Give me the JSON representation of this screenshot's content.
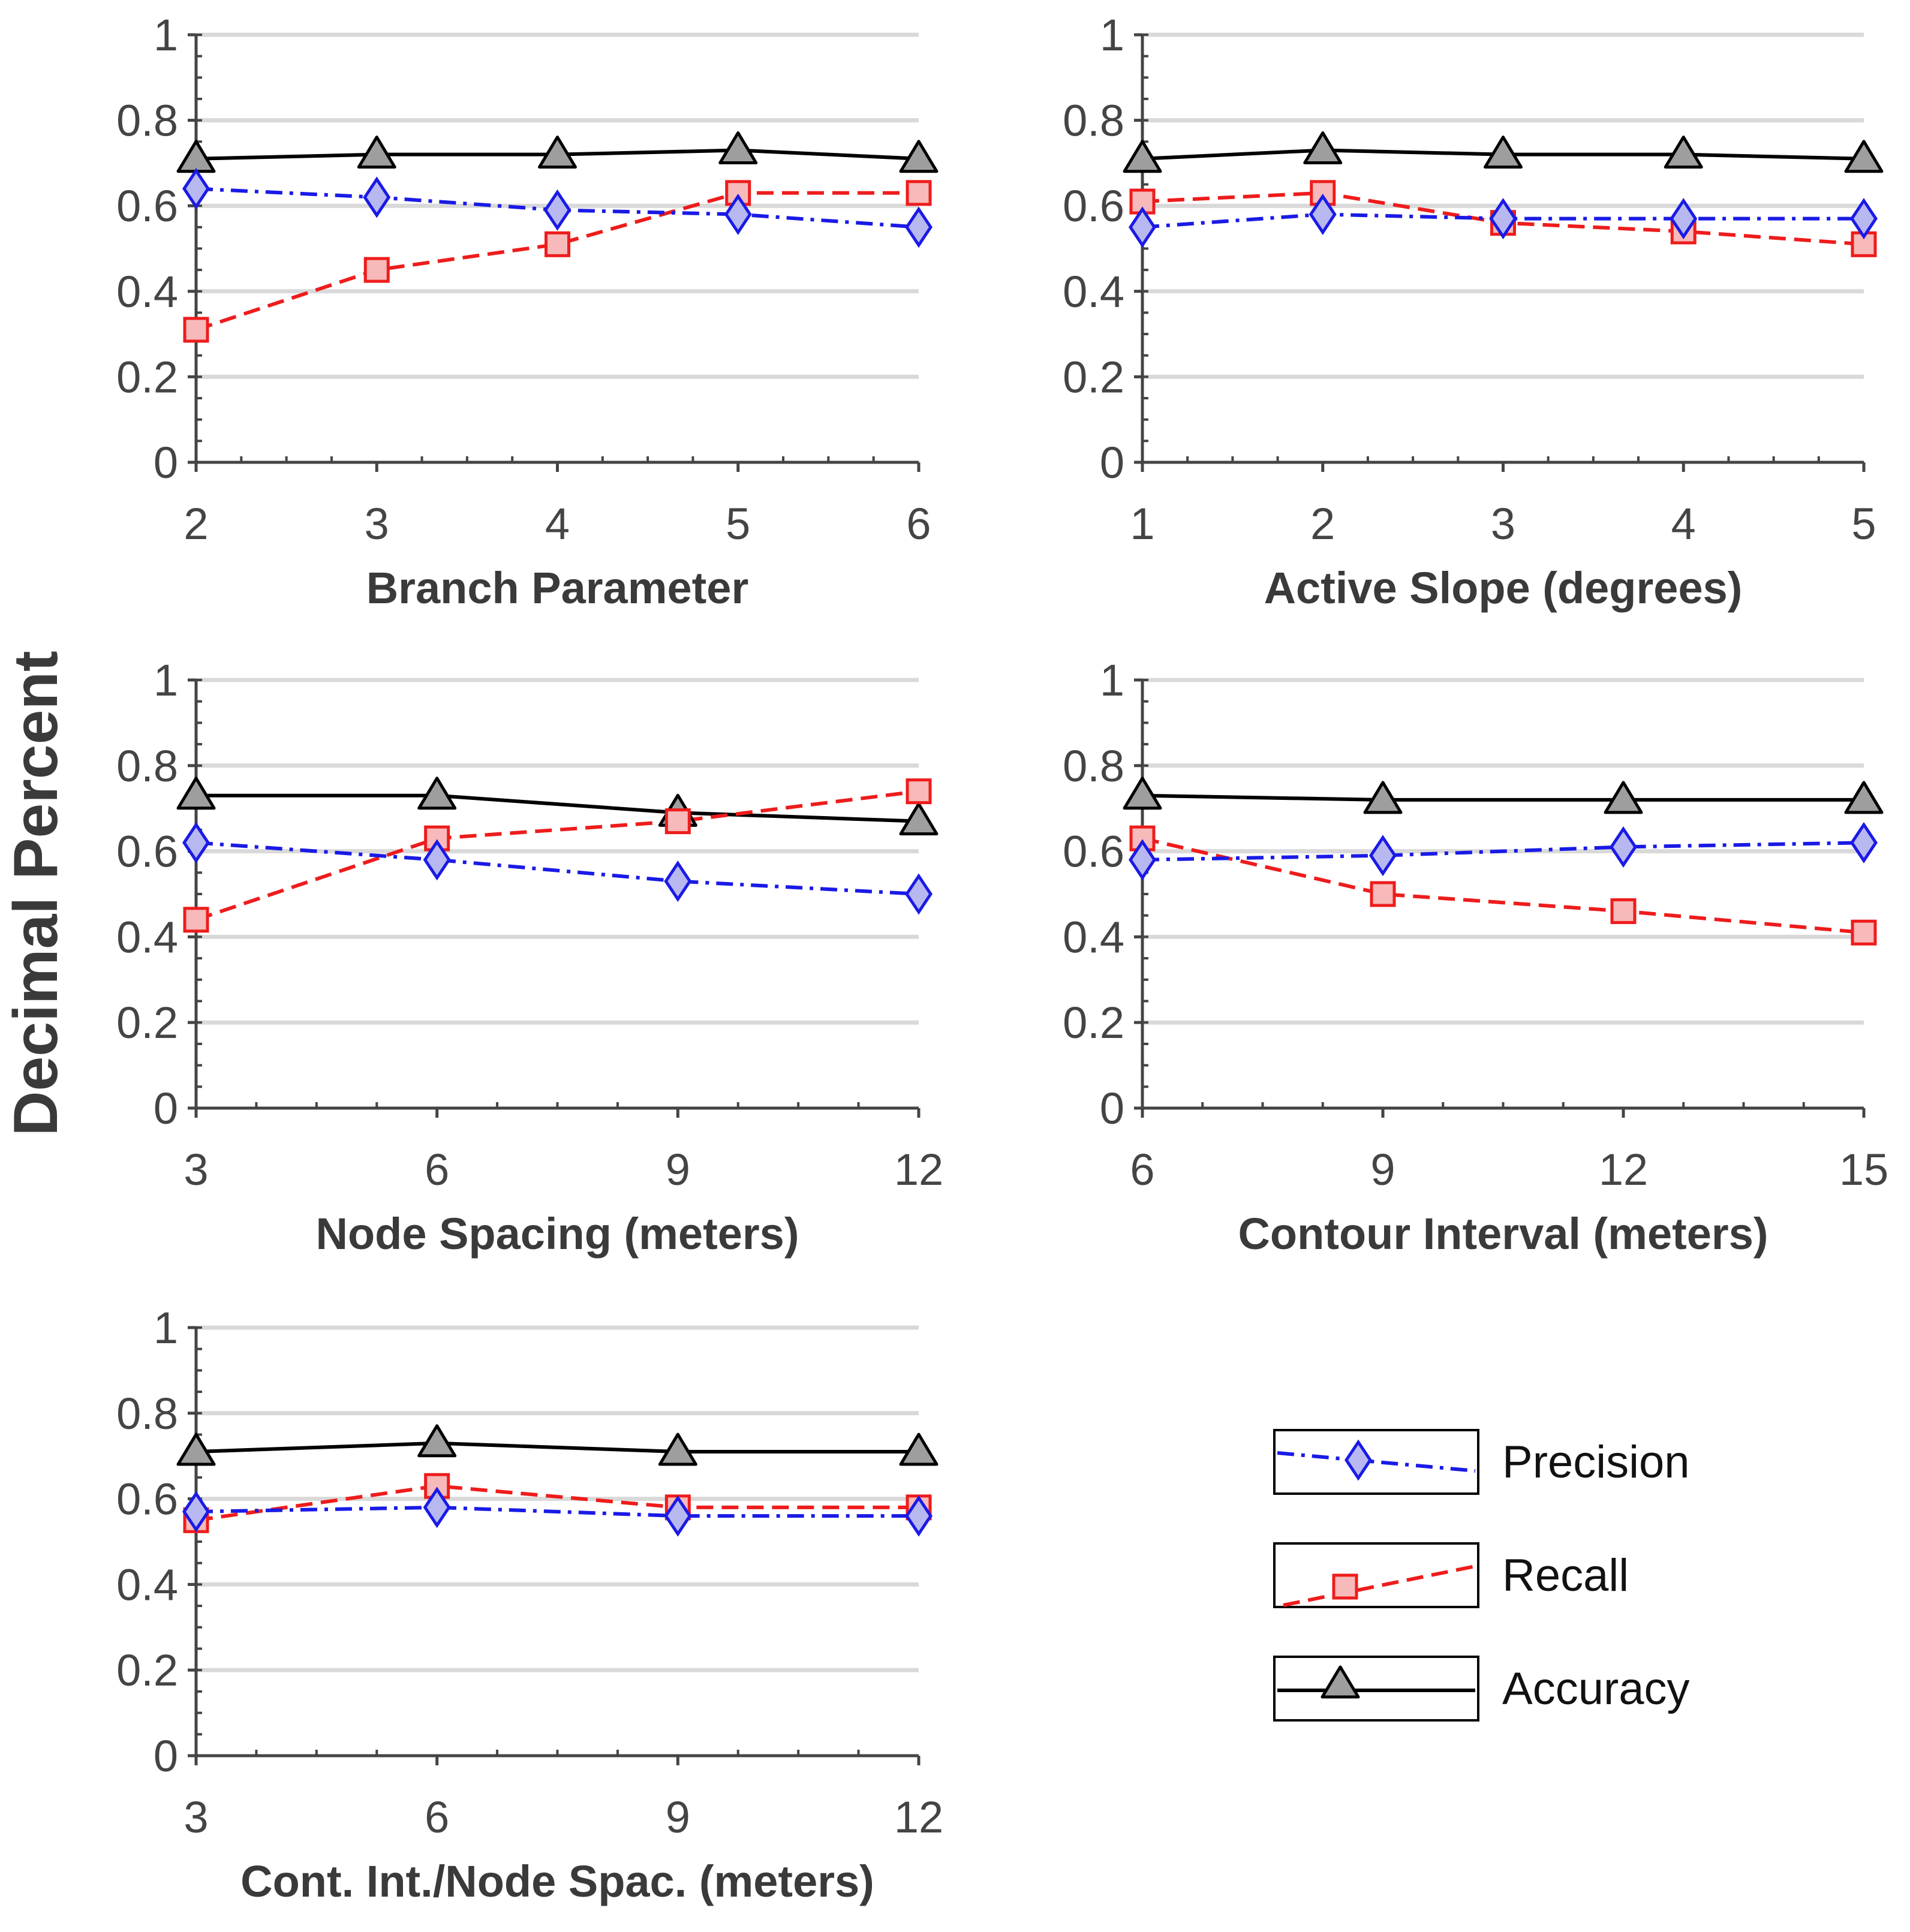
{
  "y_axis_title": "Decimal Percent",
  "series_style": {
    "precision": {
      "color": "#1a1ae6",
      "fill": "#b8b8f0",
      "marker": "diamond",
      "dash": "dash-dot"
    },
    "recall": {
      "color": "#ee1c1c",
      "fill": "#f7b9b9",
      "marker": "square",
      "dash": "dashed"
    },
    "accuracy": {
      "color": "#000000",
      "fill": "#9e9e9e",
      "marker": "triangle",
      "dash": "solid"
    }
  },
  "legend": [
    {
      "key": "precision",
      "label": "Precision"
    },
    {
      "key": "recall",
      "label": "Recall"
    },
    {
      "key": "accuracy",
      "label": "Accuracy"
    }
  ],
  "chart_data": [
    {
      "type": "line",
      "xlabel": "Branch Parameter",
      "ylabel": "Decimal Percent",
      "x": [
        2,
        3,
        4,
        5,
        6
      ],
      "xlim": [
        2,
        6
      ],
      "ylim": [
        0,
        1
      ],
      "y_ticks": [
        0,
        0.2,
        0.4,
        0.6,
        0.8,
        1
      ],
      "y_tick_labels": [
        "0",
        "0.2",
        "0.4",
        "0.6",
        "0.8",
        "1"
      ],
      "series": [
        {
          "key": "precision",
          "name": "Precision",
          "values": [
            0.64,
            0.62,
            0.59,
            0.58,
            0.55
          ]
        },
        {
          "key": "recall",
          "name": "Recall",
          "values": [
            0.31,
            0.45,
            0.51,
            0.63,
            0.63
          ]
        },
        {
          "key": "accuracy",
          "name": "Accuracy",
          "values": [
            0.71,
            0.72,
            0.72,
            0.73,
            0.71
          ]
        }
      ]
    },
    {
      "type": "line",
      "xlabel": "Active Slope (degrees)",
      "ylabel": "Decimal Percent",
      "x": [
        1,
        2,
        3,
        4,
        5
      ],
      "xlim": [
        1,
        5
      ],
      "ylim": [
        0,
        1
      ],
      "y_ticks": [
        0,
        0.2,
        0.4,
        0.6,
        0.8,
        1
      ],
      "y_tick_labels": [
        "0",
        "0.2",
        "0.4",
        "0.6",
        "0.8",
        "1"
      ],
      "series": [
        {
          "key": "precision",
          "name": "Precision",
          "values": [
            0.55,
            0.58,
            0.57,
            0.57,
            0.57
          ]
        },
        {
          "key": "recall",
          "name": "Recall",
          "values": [
            0.61,
            0.63,
            0.56,
            0.54,
            0.51
          ]
        },
        {
          "key": "accuracy",
          "name": "Accuracy",
          "values": [
            0.71,
            0.73,
            0.72,
            0.72,
            0.71
          ]
        }
      ]
    },
    {
      "type": "line",
      "xlabel": "Node Spacing (meters)",
      "ylabel": "Decimal Percent",
      "x": [
        3,
        6,
        9,
        12
      ],
      "xlim": [
        3,
        12
      ],
      "ylim": [
        0,
        1
      ],
      "y_ticks": [
        0,
        0.2,
        0.4,
        0.6,
        0.8,
        1
      ],
      "y_tick_labels": [
        "0",
        "0.2",
        "0.4",
        "0.6",
        "0.8",
        "1"
      ],
      "series": [
        {
          "key": "precision",
          "name": "Precision",
          "values": [
            0.62,
            0.58,
            0.53,
            0.5
          ]
        },
        {
          "key": "recall",
          "name": "Recall",
          "values": [
            0.44,
            0.63,
            0.67,
            0.74
          ]
        },
        {
          "key": "accuracy",
          "name": "Accuracy",
          "values": [
            0.73,
            0.73,
            0.69,
            0.67
          ]
        }
      ]
    },
    {
      "type": "line",
      "xlabel": "Contour Interval (meters)",
      "ylabel": "Decimal Percent",
      "x": [
        6,
        9,
        12,
        15
      ],
      "xlim": [
        6,
        15
      ],
      "ylim": [
        0,
        1
      ],
      "y_ticks": [
        0,
        0.2,
        0.4,
        0.6,
        0.8,
        1
      ],
      "y_tick_labels": [
        "0",
        "0.2",
        "0.4",
        "0.6",
        "0.8",
        "1"
      ],
      "series": [
        {
          "key": "precision",
          "name": "Precision",
          "values": [
            0.58,
            0.59,
            0.61,
            0.62
          ]
        },
        {
          "key": "recall",
          "name": "Recall",
          "values": [
            0.63,
            0.5,
            0.46,
            0.41
          ]
        },
        {
          "key": "accuracy",
          "name": "Accuracy",
          "values": [
            0.73,
            0.72,
            0.72,
            0.72
          ]
        }
      ]
    },
    {
      "type": "line",
      "xlabel": "Cont. Int./Node Spac. (meters)",
      "ylabel": "Decimal Percent",
      "x": [
        3,
        6,
        9,
        12
      ],
      "xlim": [
        3,
        12
      ],
      "ylim": [
        0,
        1
      ],
      "y_ticks": [
        0,
        0.2,
        0.4,
        0.6,
        0.8,
        1
      ],
      "y_tick_labels": [
        "0",
        "0.2",
        "0.4",
        "0.6",
        "0.8",
        "1"
      ],
      "series": [
        {
          "key": "precision",
          "name": "Precision",
          "values": [
            0.57,
            0.58,
            0.56,
            0.56
          ]
        },
        {
          "key": "recall",
          "name": "Recall",
          "values": [
            0.55,
            0.63,
            0.58,
            0.58
          ]
        },
        {
          "key": "accuracy",
          "name": "Accuracy",
          "values": [
            0.71,
            0.73,
            0.71,
            0.71
          ]
        }
      ]
    }
  ]
}
